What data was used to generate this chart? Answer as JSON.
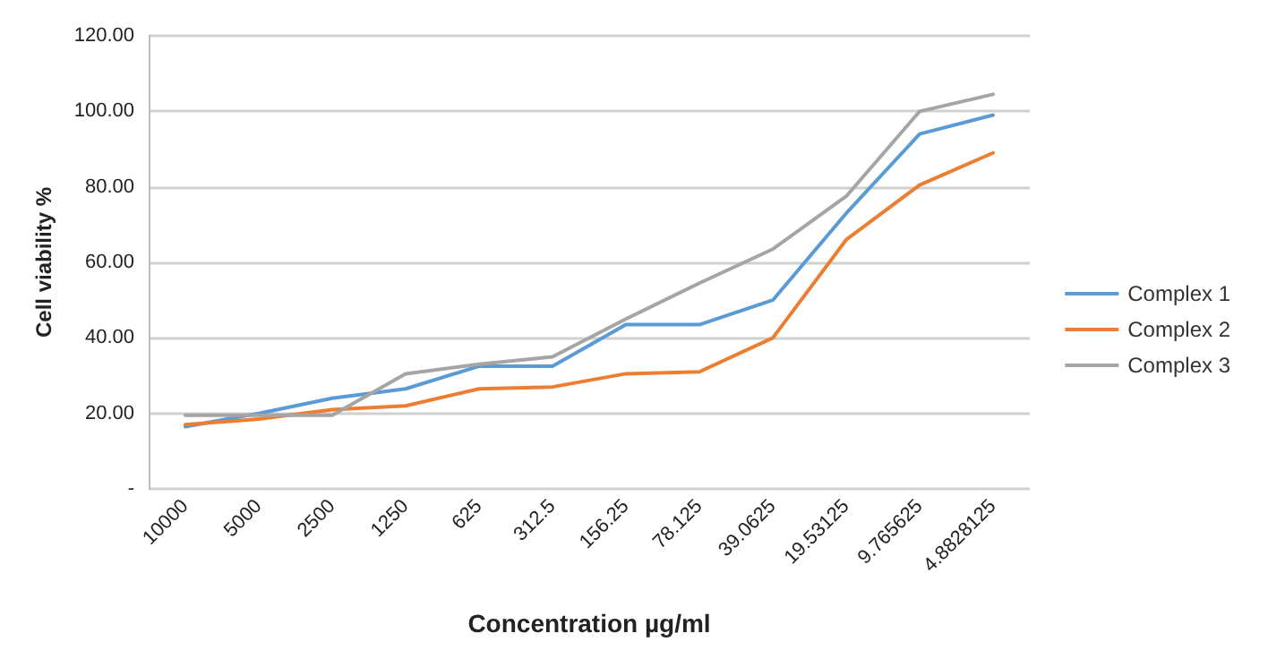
{
  "chart_data": {
    "type": "line",
    "xlabel": "Concentration µg/ml",
    "ylabel": "Cell viability %",
    "categories": [
      "10000",
      "5000",
      "2500",
      "1250",
      "625",
      "312.5",
      "156.25",
      "78.125",
      "39.0625",
      "19.53125",
      "9.765625",
      "4.8828125"
    ],
    "series": [
      {
        "name": "Complex 1",
        "color": "#5b9bd5",
        "values": [
          16.5,
          20,
          24,
          26.5,
          32.5,
          32.5,
          43.5,
          43.5,
          50,
          73,
          94,
          99
        ]
      },
      {
        "name": "Complex 2",
        "color": "#ed7d31",
        "values": [
          17,
          18.5,
          21,
          22,
          26.5,
          27,
          30.5,
          31,
          40,
          66,
          80.5,
          89
        ]
      },
      {
        "name": "Complex 3",
        "color": "#a5a5a5",
        "values": [
          19.5,
          19.5,
          19.5,
          30.5,
          33,
          35,
          45,
          54.5,
          63.5,
          77.5,
          100,
          104.5
        ]
      }
    ],
    "ylim": [
      0,
      120
    ],
    "yticks": [
      {
        "value": 0,
        "label": "-"
      },
      {
        "value": 20,
        "label": "20.00"
      },
      {
        "value": 40,
        "label": "40.00"
      },
      {
        "value": 60,
        "label": "60.00"
      },
      {
        "value": 80,
        "label": "80.00"
      },
      {
        "value": 100,
        "label": "100.00"
      },
      {
        "value": 120,
        "label": "120.00"
      }
    ],
    "grid": "y",
    "legend": "right",
    "marker": "none",
    "line_style": "solid"
  }
}
